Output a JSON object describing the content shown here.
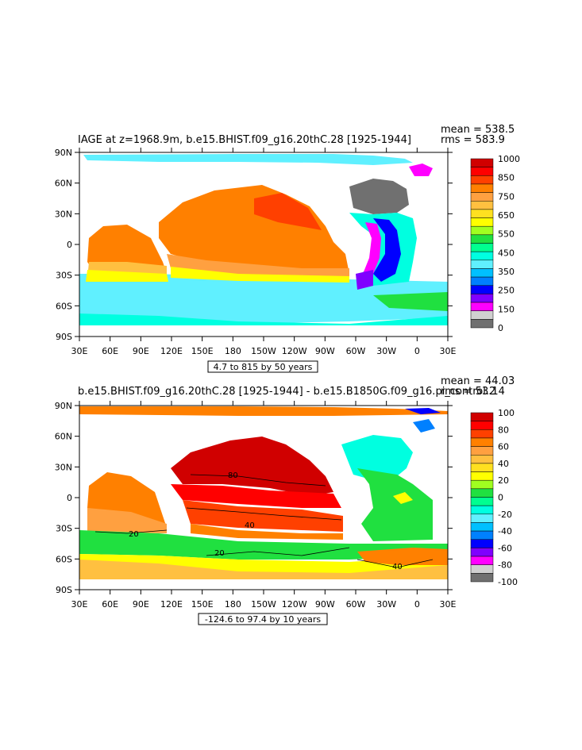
{
  "panels": [
    {
      "title": "IAGE at z=1968.9m, b.e15.BHIST.f09_g16.20thC.28 [1925-1944]",
      "stat_mean": "mean = 538.5",
      "stat_rms": "rms = 583.9",
      "range_label": "4.7 to 815 by 50 years",
      "colorbar_labels": [
        "1000",
        "850",
        "750",
        "650",
        "550",
        "450",
        "350",
        "250",
        "150",
        "0"
      ],
      "colors": [
        "#d00000",
        "#ff0000",
        "#ff4000",
        "#ff8000",
        "#ffa040",
        "#ffc040",
        "#ffe020",
        "#ffff00",
        "#a0ff20",
        "#20e040",
        "#00ff90",
        "#00ffe0",
        "#60f0ff",
        "#00c0ff",
        "#0080ff",
        "#0000ff",
        "#8000ff",
        "#ff00ff",
        "#d0d0d0",
        "#707070"
      ],
      "contour_labels": []
    },
    {
      "title": "b.e15.BHIST.f09_g16.20thC.28 [1925-1944] - b.e15.B1850G.f09_g16.pi_control.2",
      "stat_mean": "mean = 44.03",
      "stat_rms": "rms = 53.14",
      "range_label": "-124.6 to 97.4 by 10 years",
      "colorbar_labels": [
        "100",
        "80",
        "60",
        "40",
        "20",
        "0",
        "-20",
        "-40",
        "-60",
        "-80",
        "-100"
      ],
      "colors": [
        "#d00000",
        "#ff0000",
        "#ff4000",
        "#ff8000",
        "#ffa040",
        "#ffc040",
        "#ffe020",
        "#ffff00",
        "#a0ff20",
        "#20e040",
        "#00ff90",
        "#00ffe0",
        "#60f0ff",
        "#00c0ff",
        "#0080ff",
        "#0000ff",
        "#8000ff",
        "#ff00ff",
        "#d0d0d0",
        "#707070"
      ],
      "contour_labels": [
        "80",
        "40",
        "20",
        "20",
        "40"
      ]
    }
  ],
  "lat_labels": [
    "90N",
    "60N",
    "30N",
    "0",
    "30S",
    "60S",
    "90S"
  ],
  "lon_labels": [
    "30E",
    "60E",
    "90E",
    "120E",
    "150E",
    "180",
    "150W",
    "120W",
    "90W",
    "60W",
    "30W",
    "0",
    "30E"
  ]
}
